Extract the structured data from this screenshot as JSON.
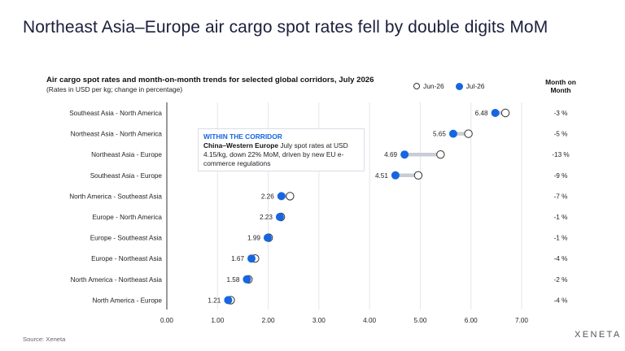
{
  "headline": "Northeast Asia–Europe air cargo spot rates fell by double digits MoM",
  "chart_data": {
    "type": "dumbbell",
    "title": "Air cargo spot rates and month-on-month trends for selected global corridors, July 2026",
    "subtitle": "(Rates in USD per kg; change in percentage)",
    "xlim": [
      0,
      7
    ],
    "xticks": [
      "0.00",
      "1.00",
      "2.00",
      "3.00",
      "4.00",
      "5.00",
      "6.00",
      "7.00"
    ],
    "grid": true,
    "legend_position": "top-right",
    "series": [
      {
        "name": "Jun-26",
        "marker": "open-circle"
      },
      {
        "name": "Jul-26",
        "marker": "filled-circle"
      }
    ],
    "mom_header": "Month on Month",
    "categories": [
      "Southeast Asia - North America",
      "Northeast Asia - North America",
      "Northeast Asia - Europe",
      "Southeast Asia - Europe",
      "North America - Southeast Asia",
      "Europe - North America",
      "Europe - Southeast Asia",
      "Europe - Northeast Asia",
      "North America - Northeast Asia",
      "North America - Europe"
    ],
    "jun": [
      6.68,
      5.95,
      5.4,
      4.96,
      2.43,
      2.25,
      2.01,
      1.74,
      1.61,
      1.26
    ],
    "jul": [
      6.48,
      5.65,
      4.69,
      4.51,
      2.26,
      2.23,
      1.99,
      1.67,
      1.58,
      1.21
    ],
    "jul_labels": [
      "6.48",
      "5.65",
      "4.69",
      "4.51",
      "2.26",
      "2.23",
      "1.99",
      "1.67",
      "1.58",
      "1.21"
    ],
    "mom": [
      "-3 %",
      "-5 %",
      "-13 %",
      "-9 %",
      "-7 %",
      "-1 %",
      "-1 %",
      "-4 %",
      "-2 %",
      "-4 %"
    ],
    "colors": {
      "jul": "#1666e0",
      "connector": "#c8ccd4",
      "grid": "#e3e6ea",
      "axis": "#333333"
    }
  },
  "callout": {
    "heading": "WITHIN THE CORRIDOR",
    "bold": "China–Western Europe",
    "text": " July spot rates at USD 4.15/kg, down 22% MoM, driven by new EU e-commerce regulations"
  },
  "source": "Source: Xeneta",
  "logo": "XENETA"
}
